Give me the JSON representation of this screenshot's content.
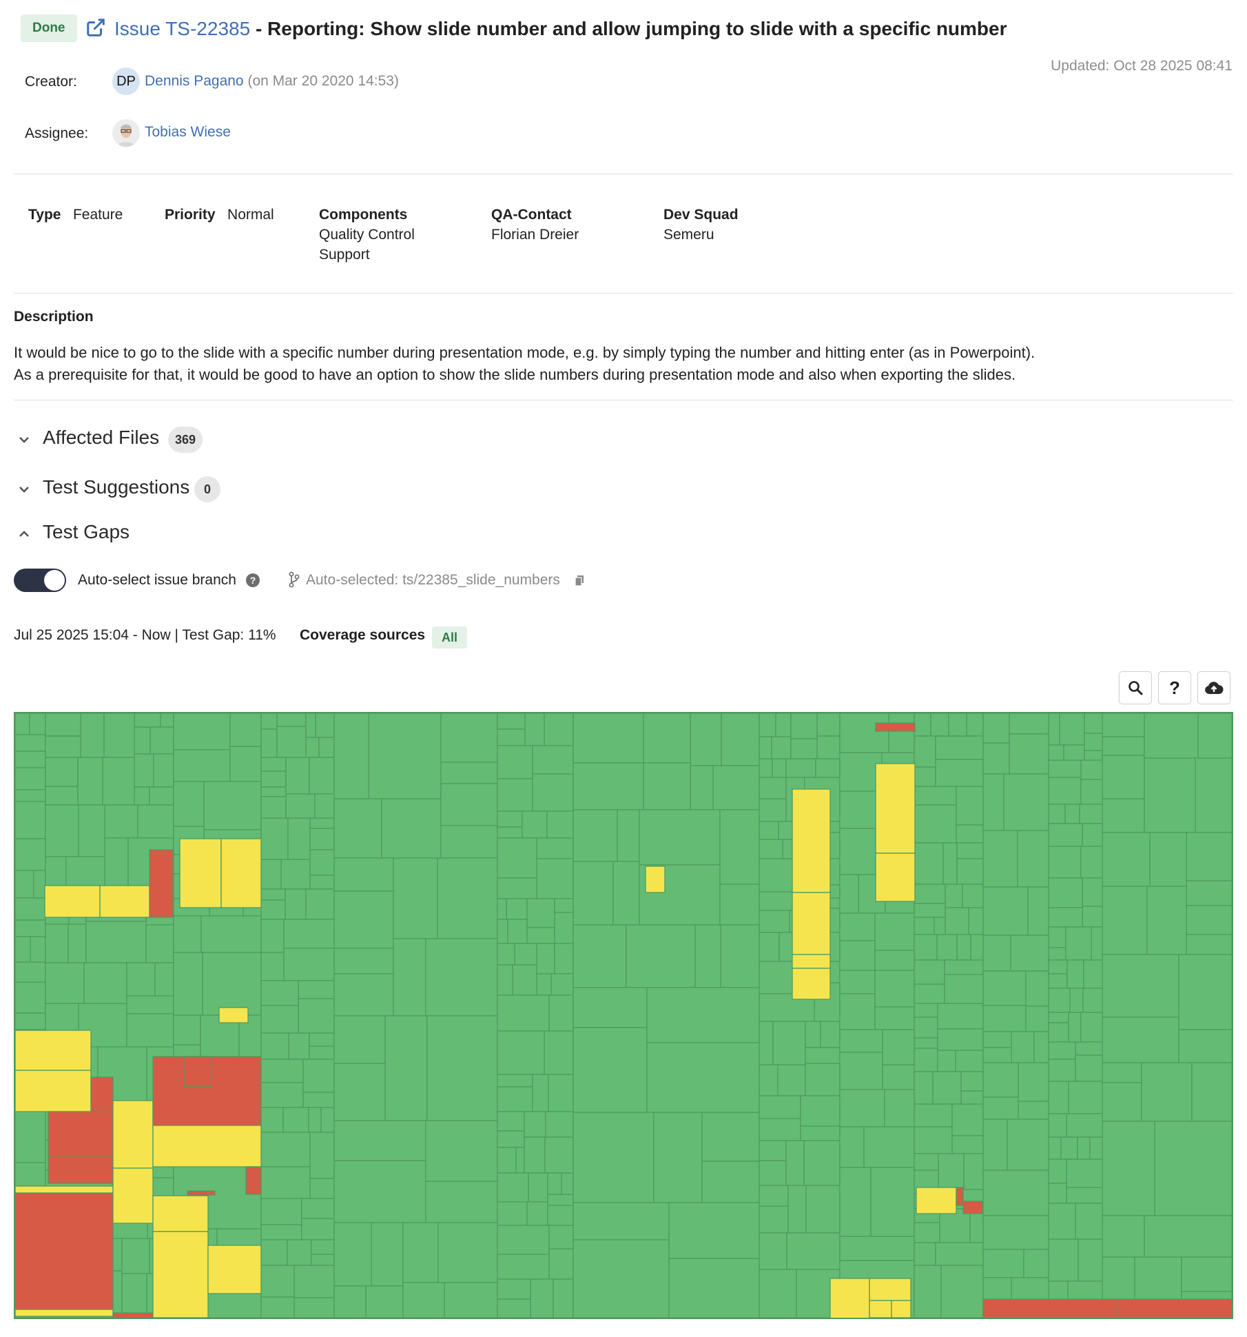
{
  "issue": {
    "status": "Done",
    "id": "Issue TS-22385",
    "title": " - Reporting: Show slide number and allow jumping to slide with a specific number",
    "updated": "Updated: Oct 28 2025 08:41",
    "creator_label": "Creator:",
    "creator_initials": "DP",
    "creator_name": "Dennis Pagano",
    "creator_date": "(on Mar 20 2020 14:53)",
    "assignee_label": "Assignee:",
    "assignee_name": "Tobias Wiese"
  },
  "attributes": {
    "type_label": "Type",
    "type_value": "Feature",
    "priority_label": "Priority",
    "priority_value": "Normal",
    "components_label": "Components",
    "components": [
      "Quality Control",
      "Support"
    ],
    "qa_label": "QA-Contact",
    "qa_value": "Florian Dreier",
    "squad_label": "Dev Squad",
    "squad_value": "Semeru"
  },
  "description": {
    "heading": "Description",
    "lines": [
      "It would be nice to go to the slide with a specific number during presentation mode, e.g. by simply typing the number and hitting enter (as in Powerpoint).",
      "As a prerequisite for that, it would be good to have an option to show the slide numbers during presentation mode and also when exporting the slides."
    ]
  },
  "sections": {
    "affected_files": {
      "label": "Affected Files",
      "count": "369",
      "expanded": false
    },
    "test_suggestions": {
      "label": "Test Suggestions",
      "count": "0",
      "expanded": false
    },
    "test_gaps": {
      "label": "Test Gaps",
      "expanded": true
    }
  },
  "test_gaps": {
    "toggle_label": "Auto-select issue branch",
    "toggle_on": true,
    "branch_text": "Auto-selected: ts/22385_slide_numbers",
    "range_text": "Jul 25 2025 15:04 - Now | Test Gap: 11%",
    "coverage_label": "Coverage sources",
    "coverage_value": "All"
  },
  "toolbar": {
    "search_icon": "search-icon",
    "help_icon": "question-icon",
    "upload_icon": "cloud-upload-icon"
  },
  "colors": {
    "link": "#3f6fb3",
    "tested": "#64bc74",
    "untested_changed": "#f6e44e",
    "untested_new": "#d65a45",
    "border": "#4e9a5e"
  }
}
